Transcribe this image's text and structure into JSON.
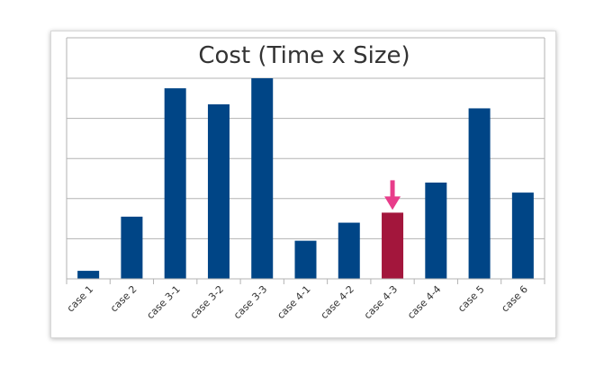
{
  "chart_data": {
    "type": "bar",
    "title": "Cost (Time x Size)",
    "xlabel": "",
    "ylabel": "",
    "y_tick_labels_shown": false,
    "ylim": [
      0,
      100
    ],
    "grid": true,
    "categories": [
      "case 1",
      "case 2",
      "case 3-1",
      "case 3-2",
      "case 3-3",
      "case 4-1",
      "case 4-2",
      "case 4-3",
      "case 4-4",
      "case 5",
      "case 6"
    ],
    "values": [
      4,
      31,
      95,
      87,
      100,
      19,
      28,
      33,
      48,
      85,
      43
    ],
    "highlighted_category": "case 4-3",
    "colors": {
      "bar": "#004586",
      "highlight_bar": "#a3163c",
      "arrow": "#e83c8a",
      "grid": "#b3b3b3"
    },
    "annotation": {
      "type": "arrow",
      "target": "case 4-3",
      "icon": "down-arrow-icon"
    }
  }
}
